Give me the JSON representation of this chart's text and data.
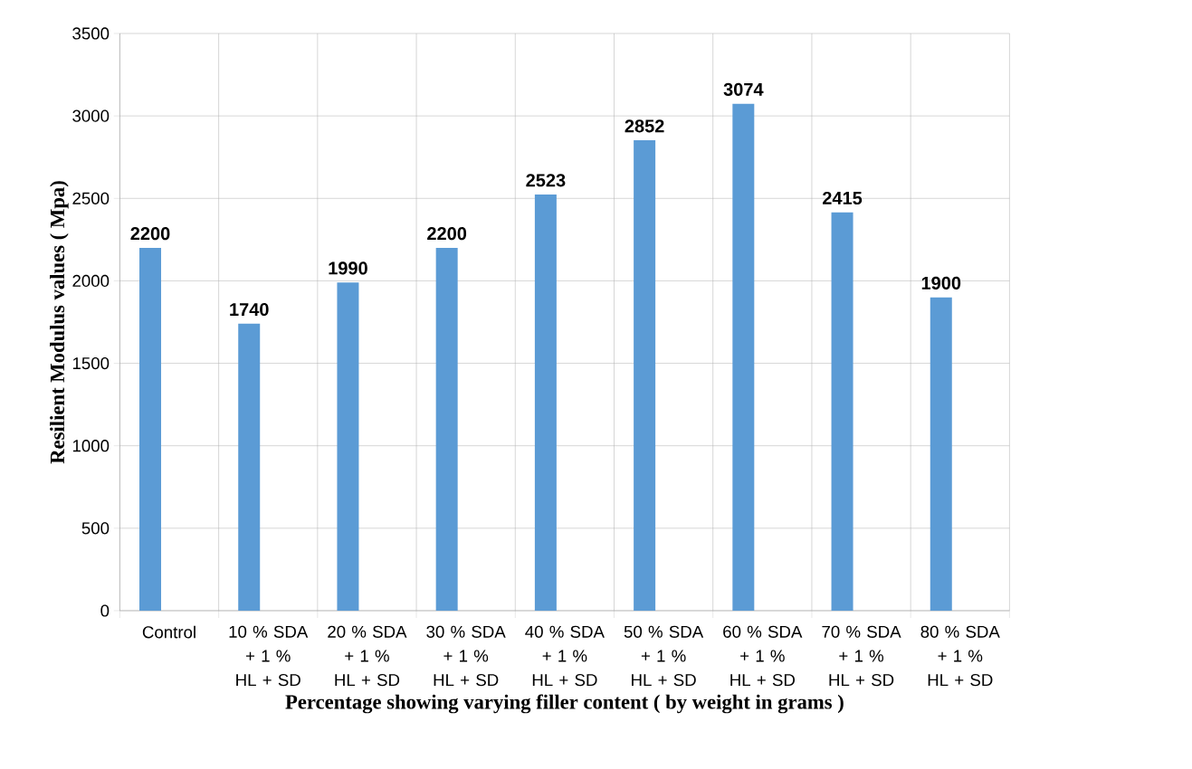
{
  "chart_data": {
    "type": "bar",
    "xlabel": "Percentage showing varying filler content ( by weight in grams )",
    "ylabel": "Resilient Modulus values ( Mpa)",
    "categories": [
      "Control",
      "10 % SDA + 1 % HL + SD",
      "20 % SDA + 1 % HL + SD",
      "30 % SDA + 1 % HL + SD",
      "40 % SDA + 1 % HL + SD",
      "50 % SDA + 1 % HL + SD",
      "60 % SDA + 1 % HL + SD",
      "70 % SDA + 1 % HL + SD",
      "80 % SDA + 1 % HL + SD"
    ],
    "values": [
      2200,
      1740,
      1990,
      2200,
      2523,
      2852,
      3074,
      2415,
      1900
    ],
    "color": "#5b9bd5",
    "ylim": [
      0,
      3500
    ],
    "yticks": [
      0,
      500,
      1000,
      1500,
      2000,
      2500,
      3000,
      3500
    ],
    "grid": true,
    "data_labels": true
  }
}
